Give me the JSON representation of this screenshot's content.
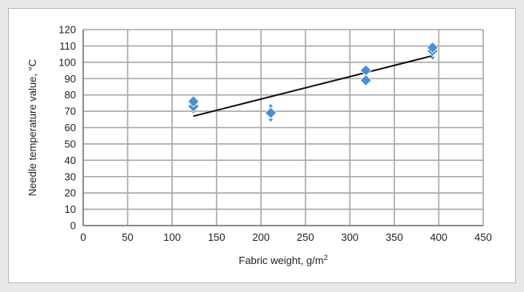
{
  "chart_data": {
    "type": "scatter",
    "title": "",
    "xlabel": "Fabric weight, g/m",
    "xlabel_superscript": "2",
    "ylabel": "Needle temperature value, °C",
    "xlim": [
      0,
      450
    ],
    "ylim": [
      0,
      120
    ],
    "x_ticks": [
      "0",
      "50",
      "100",
      "150",
      "200",
      "250",
      "300",
      "350",
      "400",
      "450"
    ],
    "y_ticks": [
      "0",
      "10",
      "20",
      "30",
      "40",
      "50",
      "60",
      "70",
      "80",
      "90",
      "100",
      "110",
      "120"
    ],
    "grid": true,
    "legend": "none",
    "marker_color": "#4a90d0",
    "errorbar_color": "#4a90d0",
    "trend_color": "#111111",
    "points": [
      {
        "x": 124,
        "y": 73,
        "err": 4
      },
      {
        "x": 124,
        "y": 76,
        "err": 1
      },
      {
        "x": 211,
        "y": 69,
        "err": 5
      },
      {
        "x": 318,
        "y": 95,
        "err": 2
      },
      {
        "x": 318,
        "y": 89,
        "err": 3
      },
      {
        "x": 393,
        "y": 107,
        "err": 5
      },
      {
        "x": 393,
        "y": 109,
        "err": 2
      }
    ],
    "trendline": {
      "x": [
        124,
        393
      ],
      "y": [
        67,
        104
      ]
    }
  }
}
